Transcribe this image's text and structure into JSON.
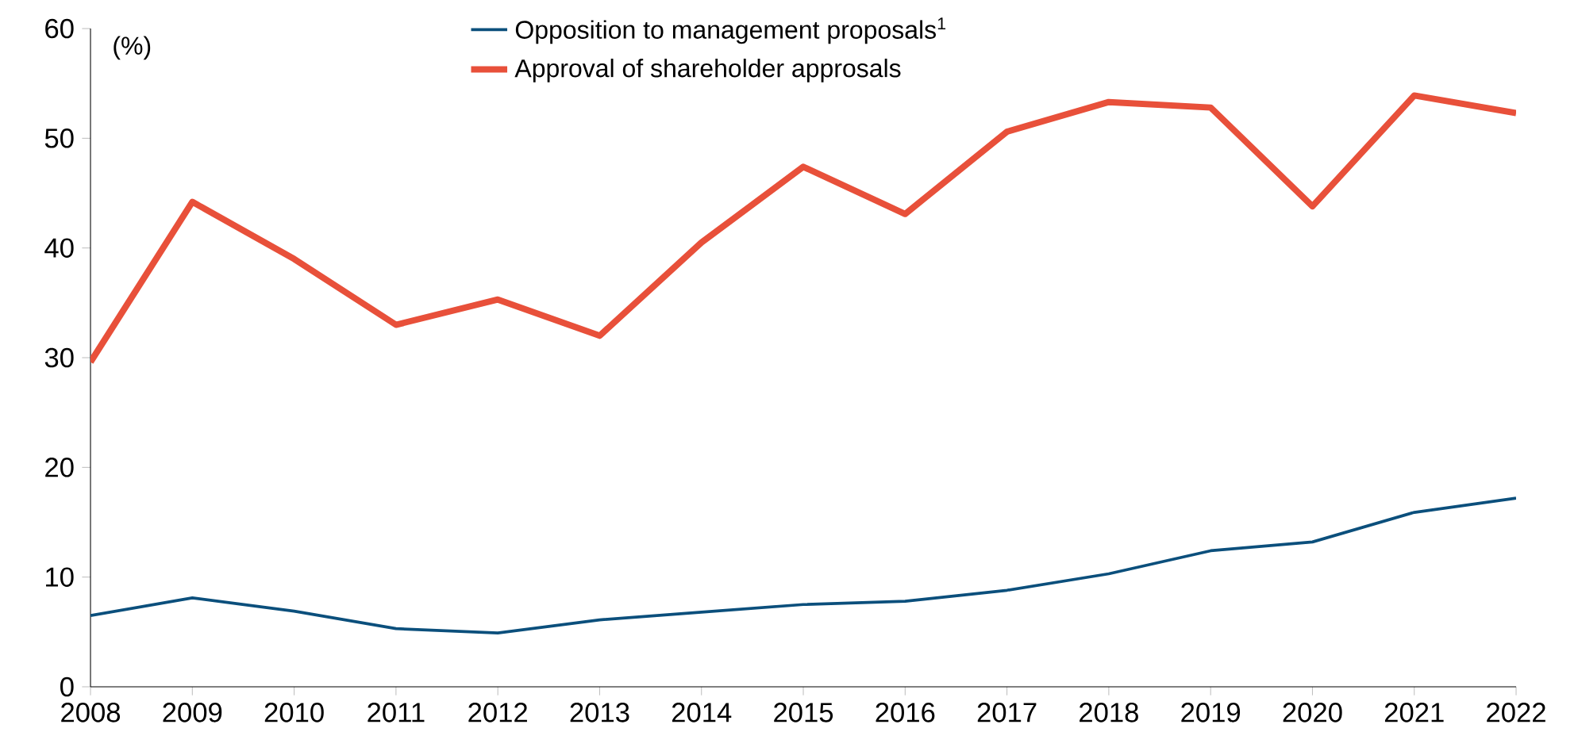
{
  "chart_data": {
    "type": "line",
    "ylabel": "(%)",
    "x": [
      2008,
      2009,
      2010,
      2011,
      2012,
      2013,
      2014,
      2015,
      2016,
      2017,
      2018,
      2019,
      2020,
      2021,
      2022
    ],
    "series": [
      {
        "name": "Opposition to management proposals$^{1}$",
        "color": "#0b4f7c",
        "values": [
          6.5,
          8.1,
          6.9,
          5.3,
          4.9,
          6.1,
          6.8,
          7.5,
          7.8,
          8.8,
          10.3,
          12.4,
          13.2,
          15.9,
          17.2
        ]
      },
      {
        "name": "Approval of shareholder approsals",
        "color": "#e8503a",
        "values": [
          29.6,
          44.2,
          39.0,
          33.0,
          35.3,
          32.0,
          40.5,
          47.4,
          43.1,
          50.6,
          53.3,
          52.8,
          43.8,
          53.9,
          52.3
        ]
      }
    ],
    "xlim": [
      2008,
      2022
    ],
    "ylim": [
      0,
      60
    ],
    "xticks": [
      2008,
      2009,
      2010,
      2011,
      2012,
      2013,
      2014,
      2015,
      2016,
      2017,
      2018,
      2019,
      2020,
      2021,
      2022
    ],
    "yticks": [
      0,
      10,
      20,
      30,
      40,
      50,
      60
    ],
    "legend": "top",
    "grid": false,
    "marker": "none",
    "line_style": "solid"
  }
}
